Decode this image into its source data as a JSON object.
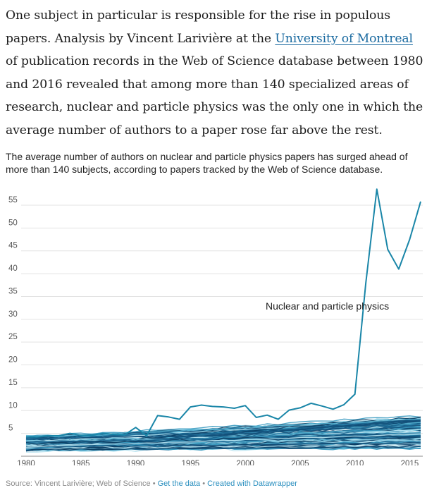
{
  "article": {
    "text_before": "One subject in particular is responsible for the rise in populous papers. Analysis by Vincent Larivière at the ",
    "link_text": "University of Montreal",
    "text_after": " of publication records in the Web of Science database between 1980 and 2016 revealed that among more than 140 specialized areas of research, nuclear and particle physics was the only one in which the average number of authors to a paper rose far above the rest."
  },
  "chart_data": {
    "type": "line",
    "title": "",
    "description": "The average number of authors on nuclear and particle physics papers has surged ahead of more than 140 subjects, according to papers tracked by the Web of Science database.",
    "xlabel": "",
    "ylabel": "",
    "xlim": [
      1980,
      2016
    ],
    "ylim": [
      0,
      58
    ],
    "x_ticks": [
      "1980",
      "1985",
      "1990",
      "1995",
      "2000",
      "2005",
      "2010",
      "2015"
    ],
    "y_ticks": [
      "5",
      "10",
      "15",
      "20",
      "25",
      "30",
      "35",
      "40",
      "45",
      "50",
      "55"
    ],
    "grid": true,
    "highlight_series": {
      "name": "Nuclear and particle physics",
      "color": "#1a86a8",
      "x": [
        1980,
        1981,
        1982,
        1983,
        1984,
        1985,
        1986,
        1987,
        1988,
        1989,
        1990,
        1991,
        1992,
        1993,
        1994,
        1995,
        1996,
        1997,
        1998,
        1999,
        2000,
        2001,
        2002,
        2003,
        2004,
        2005,
        2006,
        2007,
        2008,
        2009,
        2010,
        2011,
        2012,
        2013,
        2014,
        2015,
        2016
      ],
      "y": [
        4.3,
        4.2,
        4.5,
        4.5,
        5.0,
        4.6,
        4.6,
        5.0,
        4.8,
        4.7,
        6.3,
        4.5,
        8.9,
        8.6,
        8.1,
        10.8,
        11.2,
        10.9,
        10.8,
        10.5,
        11.1,
        8.5,
        9.0,
        8.1,
        10.1,
        10.6,
        11.6,
        11.0,
        10.3,
        11.3,
        13.6,
        38.0,
        58.5,
        45.3,
        41.0,
        47.5,
        55.8
      ]
    },
    "background_series": {
      "count": 140,
      "colors": [
        "#0b3d62",
        "#124e78",
        "#1a6590",
        "#2a7fa8",
        "#3a9ac0",
        "#56b4d3",
        "#86cde4",
        "#b6e2ef"
      ],
      "start_range": [
        1.2,
        4.3
      ],
      "end_range": [
        1.4,
        9.0
      ]
    },
    "annotation": "Nuclear and particle physics"
  },
  "footer": {
    "source": "Source: Vincent Larivière; Web of Science",
    "sep": " • ",
    "get_data": "Get the data",
    "created": "Created with Datawrapper"
  }
}
